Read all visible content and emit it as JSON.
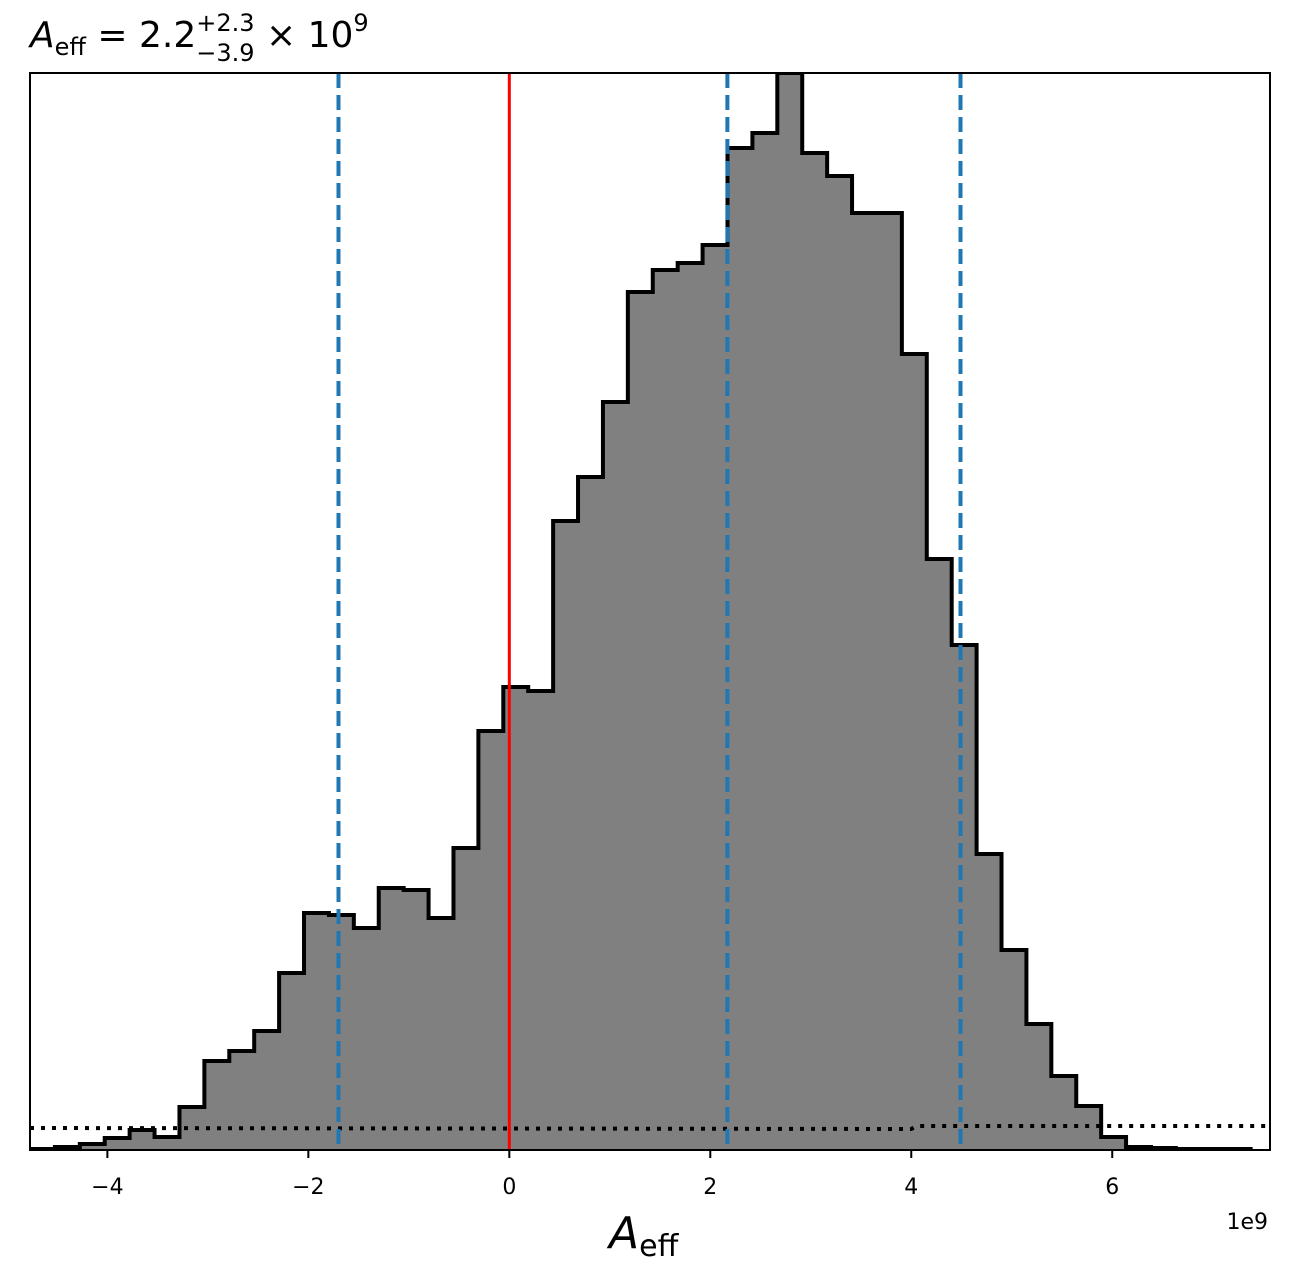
{
  "chart_data": {
    "type": "histogram",
    "title": {
      "symbol": "A",
      "symbol_sub": "eff",
      "equals": " = 2.2",
      "plus_err": "+2.3",
      "minus_err": "−3.9",
      "times_exp": " × 10",
      "exp": "9"
    },
    "xlabel": {
      "symbol": "A",
      "sub": "eff"
    },
    "x_offset_label": "1e9",
    "x_scale": 1000000000.0,
    "xlim": [
      -4.77,
      7.57
    ],
    "ylim": [
      0,
      1077
    ],
    "xticks": [
      {
        "value": -4,
        "label": "−4"
      },
      {
        "value": -2,
        "label": "−2"
      },
      {
        "value": 0,
        "label": "0"
      },
      {
        "value": 2,
        "label": "2"
      },
      {
        "value": 4,
        "label": "4"
      },
      {
        "value": 6,
        "label": "6"
      }
    ],
    "bin_start": -4.77,
    "bin_width": 0.2479,
    "values": [
      1,
      3,
      6,
      12,
      20,
      13,
      43,
      89,
      99,
      119,
      177,
      237,
      235,
      222,
      262,
      260,
      232,
      302,
      419,
      463,
      459,
      629,
      673,
      748,
      858,
      880,
      887,
      905,
      1002,
      1017,
      1077,
      997,
      974,
      937,
      937,
      796,
      591,
      505,
      296,
      200,
      126,
      74,
      44,
      13,
      3,
      2,
      1,
      1,
      1
    ],
    "hist_color": "#808080",
    "edge_color": "#000000",
    "vlines": [
      {
        "x": -1.7,
        "color": "#1f77b4",
        "style": "dashed"
      },
      {
        "x": 2.17,
        "color": "#1f77b4",
        "style": "dashed"
      },
      {
        "x": 4.49,
        "color": "#1f77b4",
        "style": "dashed"
      },
      {
        "x": 0.0,
        "color": "#ff0000",
        "style": "solid"
      }
    ],
    "prior_line": {
      "style": "dotted",
      "color": "#000000",
      "points": [
        [
          -4.77,
          22
        ],
        [
          4.0,
          21
        ],
        [
          4.05,
          24
        ],
        [
          7.57,
          24
        ]
      ]
    }
  }
}
